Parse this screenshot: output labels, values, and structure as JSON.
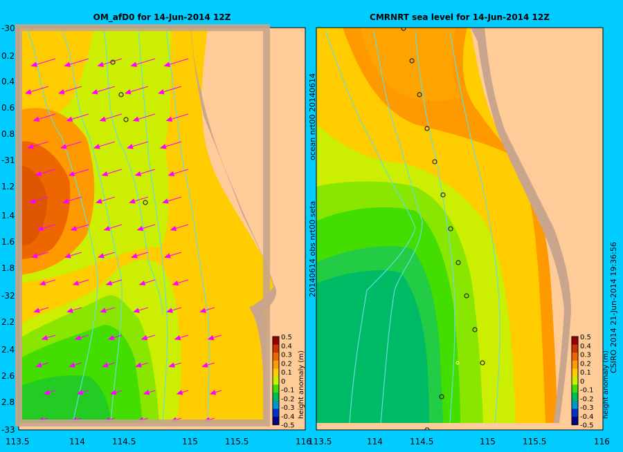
{
  "colors": {
    "background": "#00ccff",
    "land": "#ffcc99",
    "shelf": "#c8a58c",
    "arrow": "#ff00ff",
    "contour": "#66dddd",
    "obs_marker": "#222222"
  },
  "left_panel": {
    "title": "OM_afD0  for 14-Jun-2014 12Z",
    "yticks": [
      "-30",
      "0.2",
      "0.4",
      "0.6",
      "0.8",
      "-31",
      "1.2",
      "1.4",
      "1.6",
      "1.8",
      "-32",
      "2.2",
      "2.4",
      "2.6",
      "2.8",
      "-33"
    ],
    "xticks": [
      "113.5",
      "114",
      "114.5",
      "115",
      "115.5",
      "116"
    ]
  },
  "right_panel": {
    "title": "CMRNRT sea level  for 14-Jun-2014 12Z",
    "side_label_top": "ocean  nrt00  20140614",
    "side_label_bottom": "20140614 obs  nrt00  seta",
    "xticks": [
      "113.5",
      "114",
      "114.5",
      "115",
      "115.5",
      "116"
    ]
  },
  "colorbar": {
    "label": "height anomaly (m)",
    "ticks": [
      "0.5",
      "0.4",
      "0.3",
      "0.2",
      "0.1",
      "0",
      "-0.1",
      "-0.2",
      "-0.3",
      "-0.4",
      "-0.5"
    ],
    "colors": [
      "#990000",
      "#cc3300",
      "#ee6600",
      "#ff9900",
      "#ffcc00",
      "#ccee00",
      "#44dd00",
      "#00bb55",
      "#0099cc",
      "#0033cc",
      "#000088"
    ]
  },
  "footer": {
    "credit": "CSIRO 2014   21-Jun-2014 19:36:56"
  }
}
